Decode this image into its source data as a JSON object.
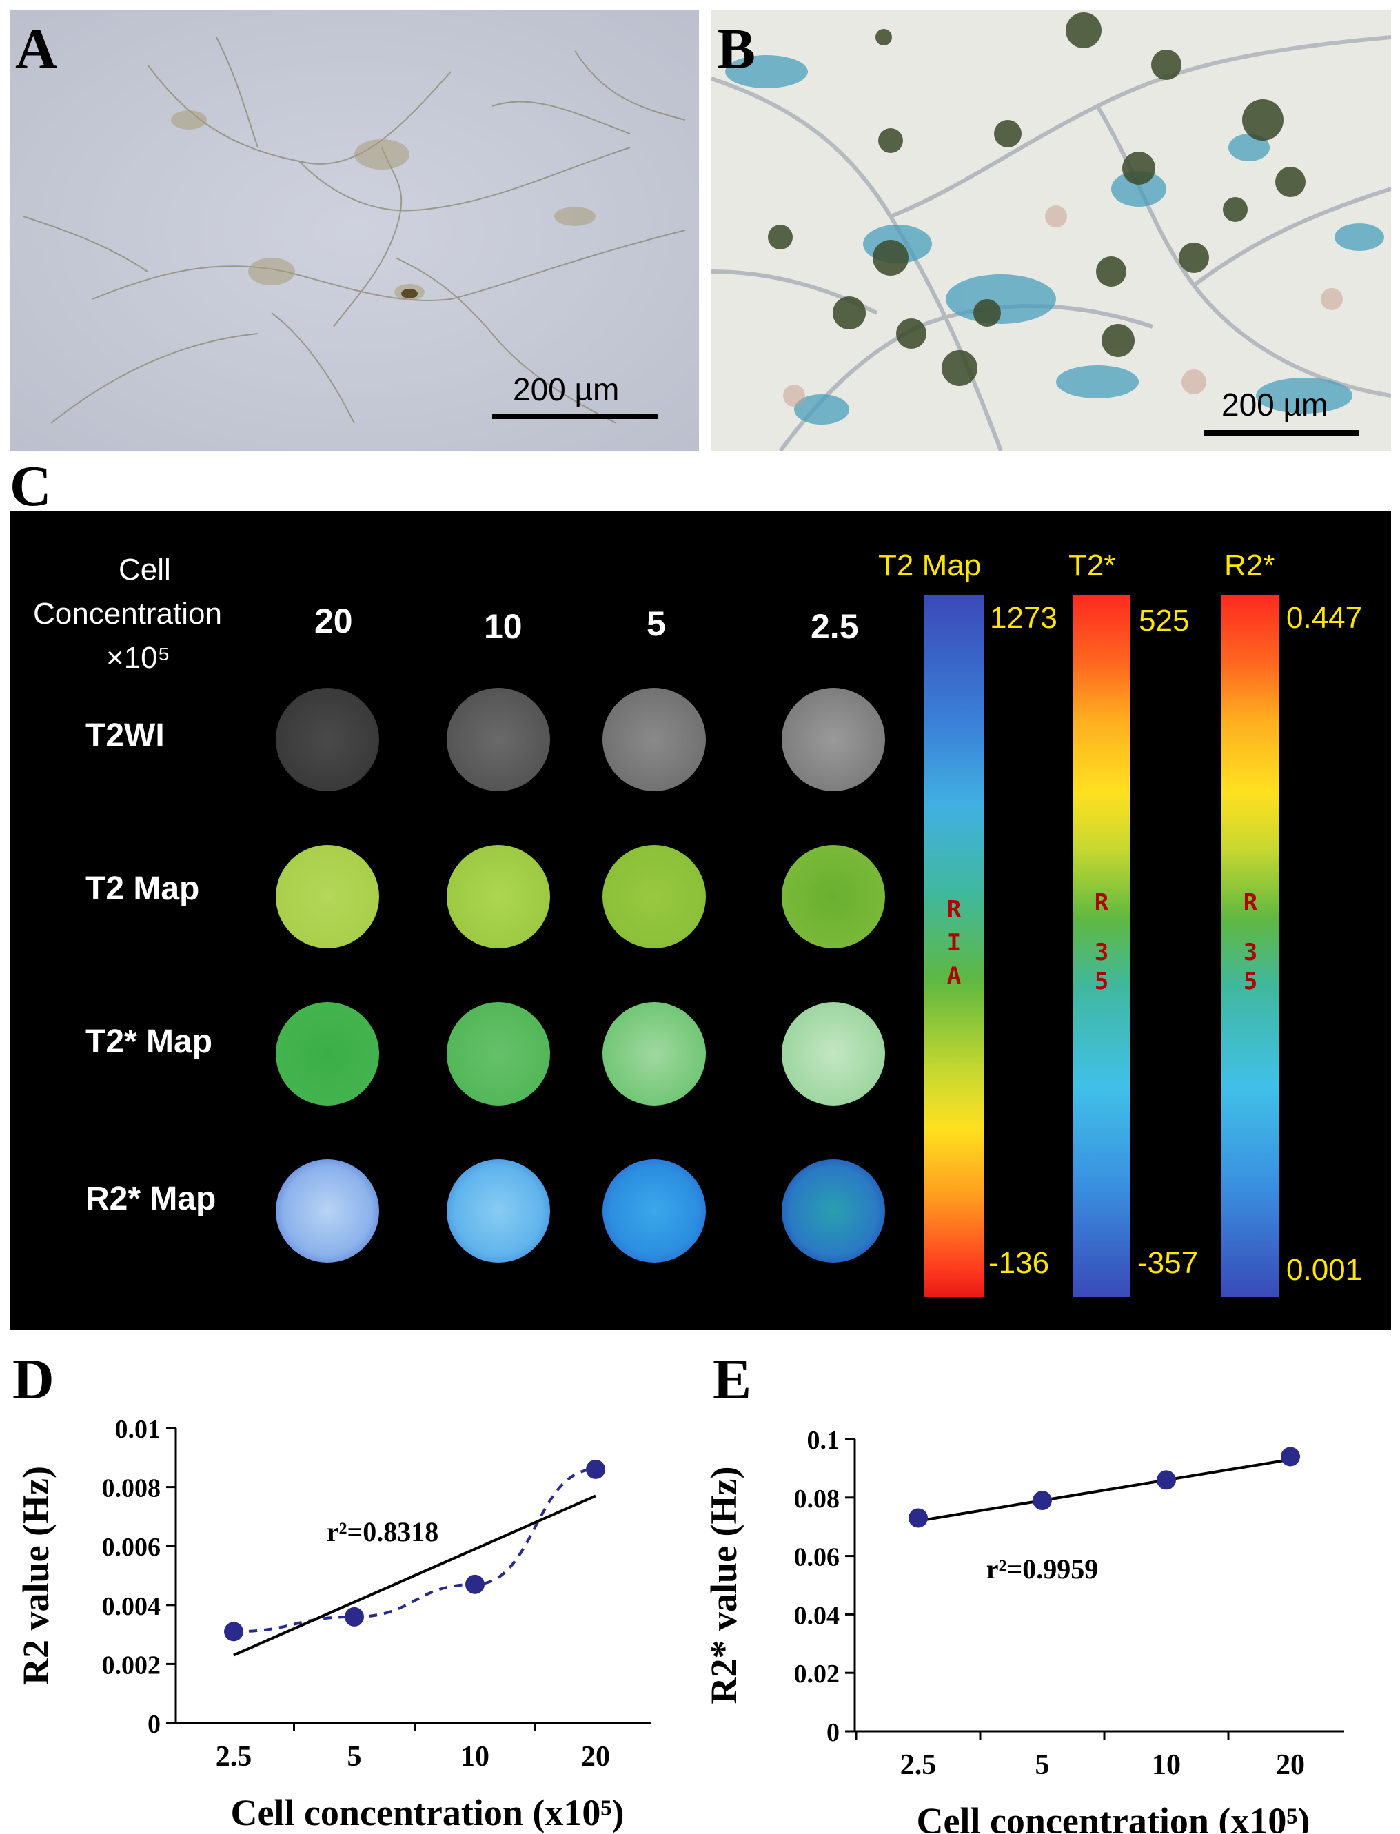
{
  "panels": {
    "a": "A",
    "b": "B",
    "c": "C",
    "d": "D",
    "e": "E"
  },
  "scalebars": {
    "a_label": "200 µm",
    "b_label": "200 µm"
  },
  "mri": {
    "header": {
      "line1": "Cell",
      "line2": "Concentration",
      "line3": "×10⁵"
    },
    "concentrations": [
      "20",
      "10",
      "5",
      "2.5"
    ],
    "rows": [
      "T2WI",
      "T2 Map",
      "T2* Map",
      "R2* Map"
    ],
    "colorbars": [
      {
        "title": "T2 Map",
        "max": "1273",
        "min": "-136",
        "mark": [
          "R",
          "I",
          "A"
        ]
      },
      {
        "title": "T2*",
        "max": "525",
        "min": "-357",
        "mark": [
          "R",
          "3",
          "5"
        ]
      },
      {
        "title": "R2*",
        "max": "0.447",
        "min": "0.001",
        "mark": [
          "R",
          "3",
          "5"
        ]
      }
    ],
    "colors": {
      "t2wi_outer": "#7a7a7a",
      "t2map": "#a8cf4a",
      "t2star": "#47b94e",
      "r2star": "#4a8fdc",
      "label_yellow": "#ffe600"
    }
  },
  "chart_data": [
    {
      "type": "scatter",
      "panel": "D",
      "title": "",
      "xlabel": "Cell concentration (x10⁵)",
      "ylabel": "R2 value (Hz)",
      "categories": [
        "2.5",
        "5",
        "10",
        "20"
      ],
      "x": [
        2.5,
        5,
        10,
        20
      ],
      "values": [
        0.0031,
        0.0036,
        0.0047,
        0.0086
      ],
      "ylim": [
        0,
        0.01
      ],
      "yticks": [
        "0",
        "0.002",
        "0.004",
        "0.006",
        "0.008",
        "0.01"
      ],
      "fit": {
        "start": 0.0023,
        "end": 0.0077,
        "label": "r²=0.8318"
      },
      "dashed_connector": true,
      "grid": false,
      "point_color": "#2a2a8a"
    },
    {
      "type": "scatter",
      "panel": "E",
      "title": "",
      "xlabel": "Cell concentration (x10⁵)",
      "ylabel": "R2* value (Hz)",
      "categories": [
        "2.5",
        "5",
        "10",
        "20"
      ],
      "x": [
        2.5,
        5,
        10,
        20
      ],
      "values": [
        0.073,
        0.079,
        0.086,
        0.094
      ],
      "ylim": [
        0,
        0.1
      ],
      "yticks": [
        "0",
        "0.02",
        "0.04",
        "0.06",
        "0.08",
        "0.1"
      ],
      "fit": {
        "start": 0.072,
        "end": 0.093,
        "label": "r²=0.9959"
      },
      "dashed_connector": false,
      "grid": false,
      "point_color": "#2a2a8a"
    }
  ]
}
